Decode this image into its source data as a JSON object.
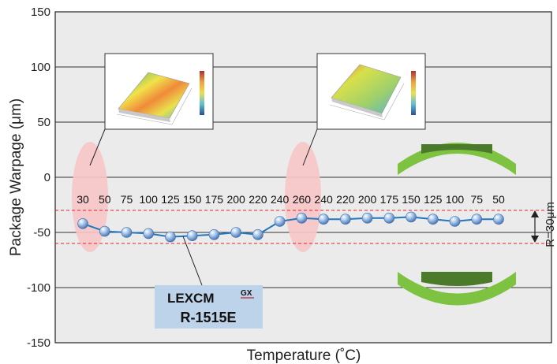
{
  "chart_data": {
    "type": "line",
    "xlabel": "Temperature (˚C)",
    "ylabel": "Package Warpage (μm)",
    "ylim": [
      -150,
      150
    ],
    "yticks": [
      "150",
      "100",
      "50",
      "0",
      "-50",
      "-100",
      "-150"
    ],
    "categories": [
      "30",
      "50",
      "75",
      "100",
      "125",
      "150",
      "175",
      "200",
      "220",
      "240",
      "260",
      "240",
      "220",
      "200",
      "175",
      "150",
      "125",
      "100",
      "75",
      "50"
    ],
    "series": [
      {
        "name": "",
        "values": [
          -42,
          -49,
          -50,
          -51,
          -54,
          -53,
          -52,
          -50,
          -52,
          -40,
          -37,
          -38,
          -38,
          -37,
          -37,
          -36,
          -38,
          -40,
          -38,
          -38
        ]
      }
    ],
    "reference_lines": [
      -30,
      -60
    ],
    "range_annotation": "R=30μm",
    "legend_label": {
      "brand": "LEXCM",
      "superscript": "GX",
      "model": "R-1515E"
    },
    "grid": true
  },
  "colors": {
    "plot_background": "#ebebeb",
    "line": "#1f78c0",
    "marker": "#8fb5e2",
    "reference_line": "#e8202a",
    "highlight": "#f7c6c6",
    "legend_box": "#bcd3ea",
    "warp_light": "#7dc241",
    "warp_dark": "#4b7a2a"
  }
}
